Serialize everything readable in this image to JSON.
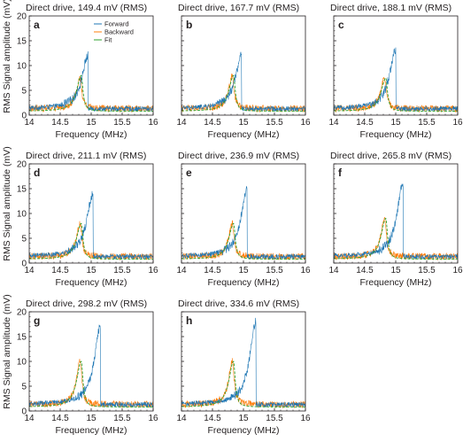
{
  "colors": {
    "forward": "#1f77b4",
    "backward": "#ff7f0e",
    "fit": "#2ca02c",
    "axis": "#231f20"
  },
  "figure": {
    "ylabel": "RMS Signal amplitude (mV)",
    "xlabel": "Frequency (MHz)"
  },
  "chart_data": [
    {
      "panel": "a",
      "type": "line",
      "title": "Direct drive, 149.4 mV (RMS)",
      "xlabel": "Frequency (MHz)",
      "xlim": [
        14,
        16
      ],
      "ylim": [
        0,
        20
      ],
      "xticks": [
        "14",
        "14.5",
        "15",
        "15.5",
        "16"
      ],
      "yticks": [
        "0",
        "5",
        "10",
        "15",
        "20"
      ],
      "legend": {
        "position": "top-left",
        "entries": [
          "Forward",
          "Backward",
          "Fit"
        ]
      },
      "series": [
        {
          "name": "Forward",
          "peak_x": 14.95,
          "peak_y": 12.0
        },
        {
          "name": "Backward",
          "peak_x": 14.82,
          "peak_y": 7.5
        },
        {
          "name": "Fit",
          "peak_x": 14.84,
          "peak_y": 8.0
        }
      ],
      "baseline": 1.3
    },
    {
      "panel": "b",
      "type": "line",
      "title": "Direct drive, 167.7 mV (RMS)",
      "xlabel": "Frequency (MHz)",
      "xlim": [
        14,
        16
      ],
      "ylim": [
        0,
        20
      ],
      "xticks": [
        "14",
        "14.5",
        "15",
        "15.5",
        "16"
      ],
      "yticks": [],
      "series": [
        {
          "name": "Forward",
          "peak_x": 14.97,
          "peak_y": 12.0
        },
        {
          "name": "Backward",
          "peak_x": 14.82,
          "peak_y": 8.0
        },
        {
          "name": "Fit",
          "peak_x": 14.84,
          "peak_y": 8.0
        }
      ],
      "baseline": 1.3
    },
    {
      "panel": "c",
      "type": "line",
      "title": "Direct drive, 188.1 mV (RMS)",
      "xlabel": "Frequency (MHz)",
      "xlim": [
        14,
        16
      ],
      "ylim": [
        0,
        20
      ],
      "xticks": [
        "14",
        "14.5",
        "15",
        "15.5",
        "16"
      ],
      "yticks": [],
      "series": [
        {
          "name": "Forward",
          "peak_x": 15.0,
          "peak_y": 13.2
        },
        {
          "name": "Backward",
          "peak_x": 14.82,
          "peak_y": 7.5
        },
        {
          "name": "Fit",
          "peak_x": 14.84,
          "peak_y": 7.5
        }
      ],
      "baseline": 1.3
    },
    {
      "panel": "d",
      "type": "line",
      "title": "Direct drive, 211.1 mV (RMS)",
      "xlabel": "Frequency (MHz)",
      "xlim": [
        14,
        16
      ],
      "ylim": [
        0,
        20
      ],
      "xticks": [
        "14",
        "14.5",
        "15",
        "15.5",
        "16"
      ],
      "yticks": [
        "0",
        "5",
        "10",
        "15",
        "20"
      ],
      "series": [
        {
          "name": "Forward",
          "peak_x": 15.03,
          "peak_y": 14.0
        },
        {
          "name": "Backward",
          "peak_x": 14.82,
          "peak_y": 8.0
        },
        {
          "name": "Fit",
          "peak_x": 14.84,
          "peak_y": 8.0
        }
      ],
      "baseline": 1.3
    },
    {
      "panel": "e",
      "type": "line",
      "title": "Direct drive, 236.9 mV (RMS)",
      "xlabel": "Frequency (MHz)",
      "xlim": [
        14,
        16
      ],
      "ylim": [
        0,
        20
      ],
      "xticks": [
        "14",
        "14.5",
        "15",
        "15.5",
        "16"
      ],
      "yticks": [],
      "series": [
        {
          "name": "Forward",
          "peak_x": 15.06,
          "peak_y": 15.0
        },
        {
          "name": "Backward",
          "peak_x": 14.82,
          "peak_y": 8.0
        },
        {
          "name": "Fit",
          "peak_x": 14.84,
          "peak_y": 8.0
        }
      ],
      "baseline": 1.3
    },
    {
      "panel": "f",
      "type": "line",
      "title": "Direct drive, 265.8 mV (RMS)",
      "xlabel": "Frequency (MHz)",
      "xlim": [
        14,
        16
      ],
      "ylim": [
        0,
        20
      ],
      "xticks": [
        "14",
        "14.5",
        "15",
        "15.5",
        "16"
      ],
      "yticks": [],
      "series": [
        {
          "name": "Forward",
          "peak_x": 15.12,
          "peak_y": 16.0
        },
        {
          "name": "Backward",
          "peak_x": 14.82,
          "peak_y": 9.0
        },
        {
          "name": "Fit",
          "peak_x": 14.84,
          "peak_y": 9.0
        }
      ],
      "baseline": 1.3
    },
    {
      "panel": "g",
      "type": "line",
      "title": "Direct drive, 298.2 mV (RMS)",
      "xlabel": "Frequency (MHz)",
      "xlim": [
        14,
        16
      ],
      "ylim": [
        0,
        20
      ],
      "xticks": [
        "14",
        "14.5",
        "15",
        "15.5",
        "16"
      ],
      "yticks": [
        "0",
        "5",
        "10",
        "15",
        "20"
      ],
      "series": [
        {
          "name": "Forward",
          "peak_x": 15.15,
          "peak_y": 17.0
        },
        {
          "name": "Backward",
          "peak_x": 14.82,
          "peak_y": 10.0
        },
        {
          "name": "Fit",
          "peak_x": 14.84,
          "peak_y": 10.0
        }
      ],
      "baseline": 1.3
    },
    {
      "panel": "h",
      "type": "line",
      "title": "Direct drive, 334.6 mV (RMS)",
      "xlabel": "Frequency (MHz)",
      "xlim": [
        14,
        16
      ],
      "ylim": [
        0,
        20
      ],
      "xticks": [
        "14",
        "14.5",
        "15",
        "15.5",
        "16"
      ],
      "yticks": [],
      "series": [
        {
          "name": "Forward",
          "peak_x": 15.2,
          "peak_y": 18.0
        },
        {
          "name": "Backward",
          "peak_x": 14.82,
          "peak_y": 10.0
        },
        {
          "name": "Fit",
          "peak_x": 14.84,
          "peak_y": 10.0
        }
      ],
      "baseline": 1.3
    }
  ]
}
